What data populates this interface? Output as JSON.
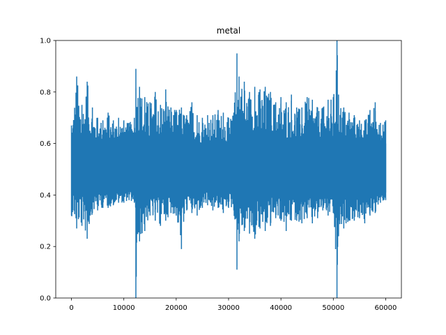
{
  "chart_data": {
    "type": "line",
    "title": "metal",
    "xlabel": "",
    "ylabel": "",
    "xlim": [
      -3000,
      63000
    ],
    "ylim": [
      0,
      1
    ],
    "xticks": [
      0,
      10000,
      20000,
      30000,
      40000,
      50000,
      60000
    ],
    "xtick_labels": [
      "0",
      "10000",
      "20000",
      "30000",
      "40000",
      "50000",
      "60000"
    ],
    "yticks": [
      0.0,
      0.2,
      0.4,
      0.6,
      0.8,
      1.0
    ],
    "ytick_labels": [
      "0.0",
      "0.2",
      "0.4",
      "0.6",
      "0.8",
      "1.0"
    ],
    "grid": false,
    "line_color": "#1f77b4",
    "series": [
      {
        "x_range": [
          0,
          60000
        ],
        "n_points": 60000,
        "envelope_x": [
          0,
          1000,
          2000,
          3000,
          4000,
          5000,
          6000,
          7000,
          8000,
          9000,
          10000,
          11000,
          12000,
          12300,
          13000,
          14000,
          15000,
          16000,
          17000,
          18000,
          19000,
          20000,
          21000,
          22000,
          23000,
          24000,
          25000,
          26000,
          27000,
          28000,
          29000,
          30000,
          31000,
          31600,
          32000,
          33000,
          34000,
          35000,
          36000,
          37000,
          38000,
          39000,
          40000,
          41000,
          42000,
          43000,
          44000,
          45000,
          46000,
          47000,
          48000,
          49000,
          50000,
          50700,
          51000,
          52000,
          53000,
          54000,
          55000,
          56000,
          57000,
          58000,
          59000,
          60000
        ],
        "envelope_max": [
          0.67,
          0.86,
          0.75,
          0.84,
          0.74,
          0.7,
          0.69,
          0.72,
          0.69,
          0.7,
          0.69,
          0.68,
          0.7,
          0.89,
          0.82,
          0.78,
          0.76,
          0.8,
          0.75,
          0.81,
          0.74,
          0.73,
          0.74,
          0.71,
          0.76,
          0.71,
          0.7,
          0.71,
          0.71,
          0.73,
          0.72,
          0.7,
          0.72,
          0.95,
          0.86,
          0.84,
          0.8,
          0.82,
          0.81,
          0.82,
          0.8,
          0.76,
          0.78,
          0.76,
          0.79,
          0.74,
          0.74,
          0.78,
          0.77,
          0.74,
          0.74,
          0.77,
          0.78,
          1.0,
          0.79,
          0.74,
          0.72,
          0.71,
          0.69,
          0.69,
          0.73,
          0.76,
          0.68,
          0.69
        ],
        "envelope_min": [
          0.32,
          0.27,
          0.28,
          0.23,
          0.33,
          0.34,
          0.35,
          0.35,
          0.36,
          0.37,
          0.37,
          0.38,
          0.37,
          0.0,
          0.22,
          0.26,
          0.32,
          0.3,
          0.28,
          0.3,
          0.33,
          0.32,
          0.19,
          0.34,
          0.33,
          0.32,
          0.35,
          0.36,
          0.34,
          0.35,
          0.33,
          0.35,
          0.34,
          0.11,
          0.22,
          0.26,
          0.25,
          0.23,
          0.27,
          0.26,
          0.28,
          0.31,
          0.3,
          0.26,
          0.3,
          0.3,
          0.29,
          0.31,
          0.29,
          0.31,
          0.34,
          0.32,
          0.33,
          0.0,
          0.24,
          0.27,
          0.3,
          0.3,
          0.31,
          0.29,
          0.32,
          0.33,
          0.37,
          0.38
        ],
        "core_max": [
          0.6,
          0.62,
          0.62,
          0.62,
          0.62,
          0.61,
          0.61,
          0.61,
          0.6,
          0.61,
          0.61,
          0.6,
          0.61,
          0.65,
          0.64,
          0.63,
          0.62,
          0.63,
          0.62,
          0.62,
          0.62,
          0.62,
          0.62,
          0.61,
          0.61,
          0.61,
          0.6,
          0.61,
          0.61,
          0.61,
          0.61,
          0.6,
          0.61,
          0.66,
          0.65,
          0.64,
          0.63,
          0.63,
          0.63,
          0.63,
          0.63,
          0.62,
          0.62,
          0.62,
          0.62,
          0.62,
          0.62,
          0.62,
          0.62,
          0.62,
          0.62,
          0.62,
          0.62,
          0.67,
          0.64,
          0.63,
          0.62,
          0.62,
          0.62,
          0.61,
          0.62,
          0.62,
          0.61,
          0.6
        ],
        "core_min": [
          0.41,
          0.4,
          0.4,
          0.4,
          0.4,
          0.41,
          0.41,
          0.41,
          0.41,
          0.41,
          0.41,
          0.42,
          0.41,
          0.36,
          0.37,
          0.38,
          0.39,
          0.39,
          0.39,
          0.39,
          0.4,
          0.4,
          0.39,
          0.4,
          0.4,
          0.4,
          0.41,
          0.41,
          0.4,
          0.4,
          0.4,
          0.41,
          0.4,
          0.34,
          0.37,
          0.38,
          0.38,
          0.38,
          0.38,
          0.38,
          0.39,
          0.39,
          0.39,
          0.39,
          0.39,
          0.39,
          0.39,
          0.39,
          0.39,
          0.39,
          0.4,
          0.39,
          0.39,
          0.34,
          0.37,
          0.38,
          0.39,
          0.39,
          0.39,
          0.39,
          0.39,
          0.4,
          0.4,
          0.41
        ]
      }
    ]
  }
}
